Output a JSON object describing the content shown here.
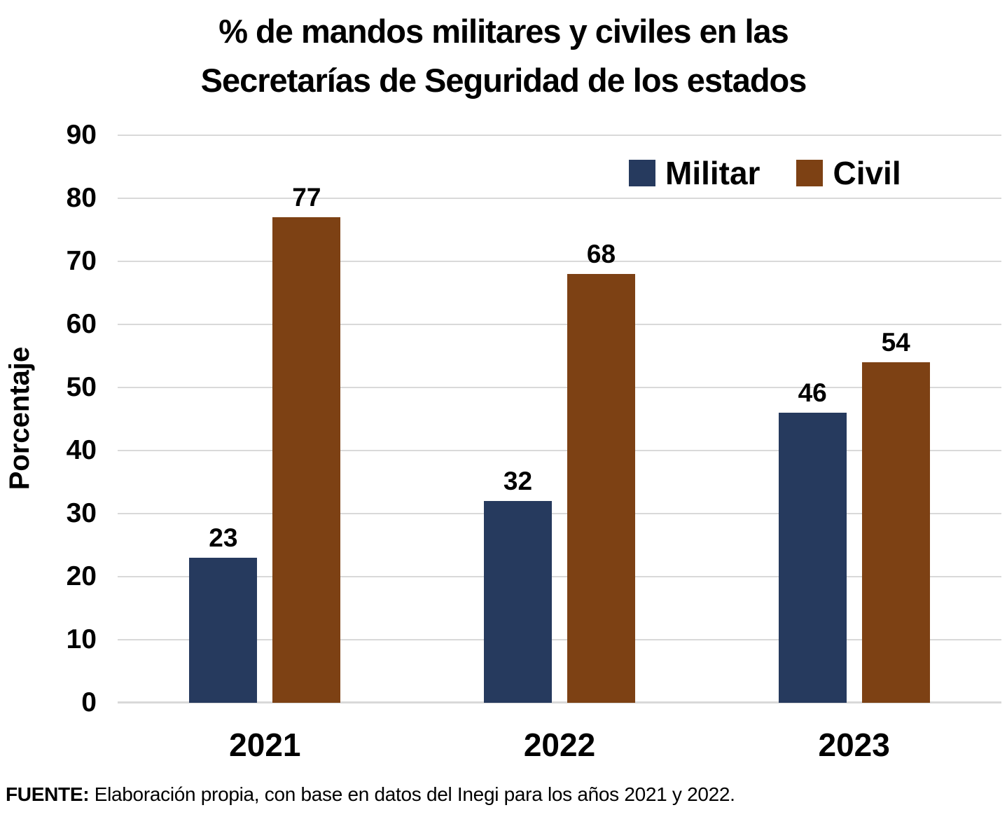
{
  "title": {
    "line1": "% de mandos militares y civiles en las",
    "line2": "Secretarías de Seguridad de los estados"
  },
  "source": {
    "label": "FUENTE:",
    "text": "Elaboración propia, con base en datos del Inegi para los años 2021 y 2022."
  },
  "colors": {
    "militar": "#263A5E",
    "civil": "#7D4114",
    "gridline": "#D9D9D9",
    "text": "#000000",
    "background": "#FFFFFF"
  },
  "chart_data": {
    "type": "bar",
    "title": "% de mandos militares y civiles en las Secretarías de Seguridad de los estados",
    "categories": [
      "2021",
      "2022",
      "2023"
    ],
    "series": [
      {
        "name": "Militar",
        "color": "#263A5E",
        "values": [
          23,
          32,
          46
        ]
      },
      {
        "name": "Civil",
        "color": "#7D4114",
        "values": [
          77,
          68,
          54
        ]
      }
    ],
    "xlabel": "",
    "ylabel": "Porcentaje",
    "ylim": [
      0,
      90
    ],
    "ytick_step": 10,
    "grid": true,
    "legend_position": "top-right-inside",
    "value_labels": true
  }
}
